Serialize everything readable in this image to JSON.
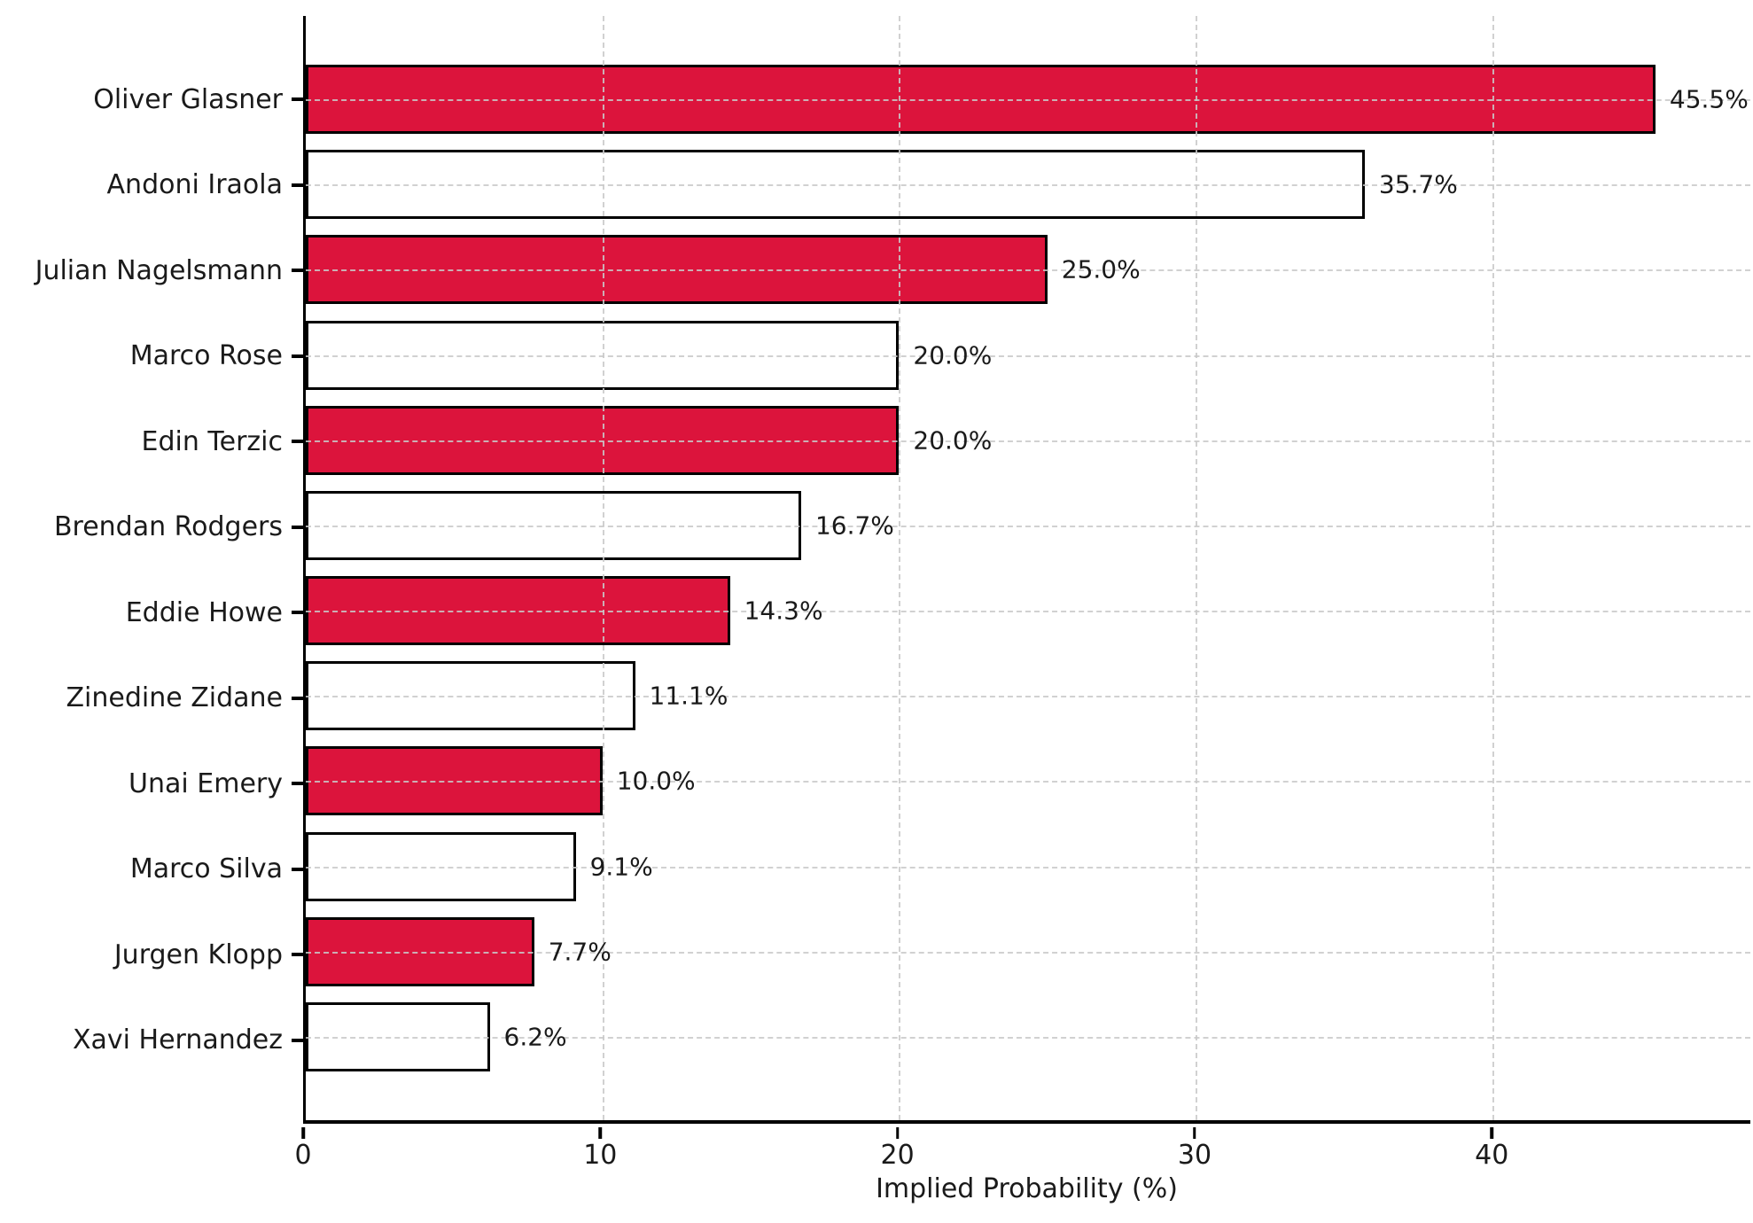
{
  "chart_data": {
    "type": "bar",
    "orientation": "horizontal",
    "title": "",
    "xlabel": "Implied Probability (%)",
    "ylabel": "",
    "categories": [
      "Oliver Glasner",
      "Andoni Iraola",
      "Julian Nagelsmann",
      "Marco Rose",
      "Edin Terzic",
      "Brendan Rodgers",
      "Eddie Howe",
      "Zinedine Zidane",
      "Unai Emery",
      "Marco Silva",
      "Jurgen Klopp",
      "Xavi Hernandez"
    ],
    "values": [
      45.5,
      35.7,
      25.0,
      20.0,
      20.0,
      16.7,
      14.3,
      11.1,
      10.0,
      9.1,
      7.7,
      6.2
    ],
    "value_labels": [
      "45.5%",
      "35.7%",
      "25.0%",
      "20.0%",
      "20.0%",
      "16.7%",
      "14.3%",
      "11.1%",
      "10.0%",
      "9.1%",
      "7.7%",
      "6.2%"
    ],
    "bar_colors": [
      "#DC143C",
      "#FFFFFF",
      "#DC143C",
      "#FFFFFF",
      "#DC143C",
      "#FFFFFF",
      "#DC143C",
      "#FFFFFF",
      "#DC143C",
      "#FFFFFF",
      "#DC143C",
      "#FFFFFF"
    ],
    "x_ticks": [
      0,
      10,
      20,
      30,
      40
    ],
    "x_tick_labels": [
      "0",
      "10",
      "20",
      "30",
      "40"
    ],
    "xlim": [
      0,
      48.7
    ],
    "grid": "dashed",
    "legend": "none"
  },
  "style": {
    "bar_fill_accent": "#DC143C",
    "bar_fill_plain": "#FFFFFF",
    "bar_edge": "#000000",
    "grid_color": "#C9C9C9",
    "axis_color": "#000000",
    "text_color": "#1A1A1A",
    "background": "#FFFFFF"
  }
}
